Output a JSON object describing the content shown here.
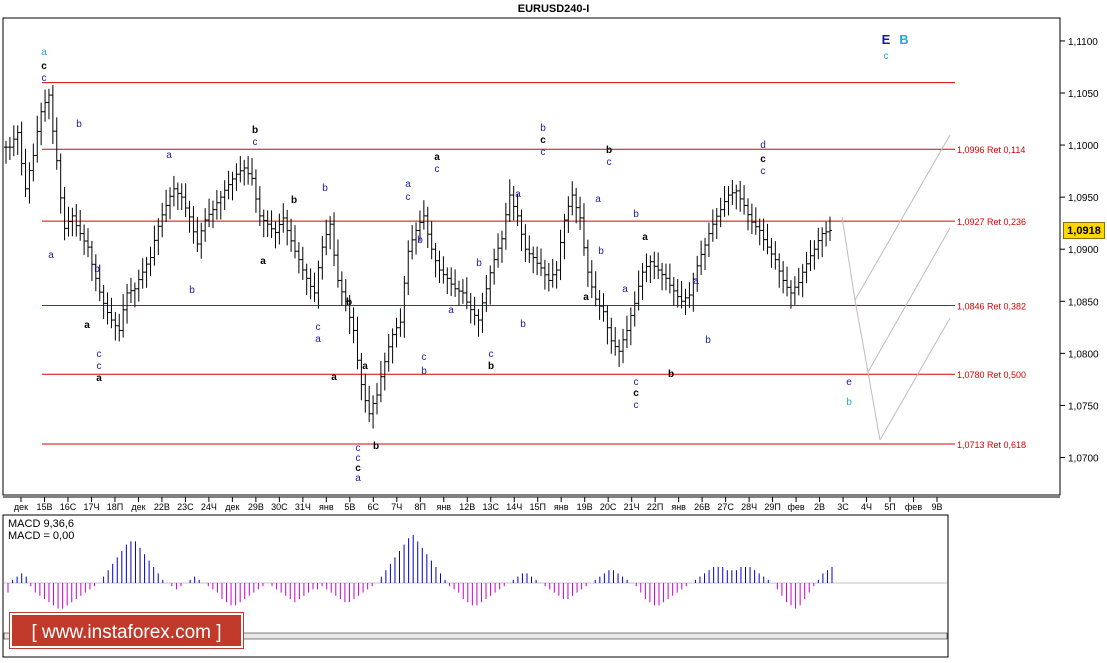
{
  "title": "EURUSD240-I",
  "current_price": "1,0918",
  "watermark": "[ www.instaforex.com ]",
  "macd": {
    "label1": "MACD 9,36,6",
    "label2": "MACD = 0,00"
  },
  "colors": {
    "retracement": "#dd0000",
    "bar": "#000000",
    "macd": "#cc00cc",
    "macd_pos": "#0000cc",
    "price_box": "#ffd700",
    "watermark_bg": "#c0392b",
    "wave_blue": "#1a1aa6",
    "wave_cyan": "#2aa6d6"
  },
  "chart_data": {
    "type": "ohlc",
    "symbol": "EURUSD",
    "timeframe": "H4",
    "y_ticks": [
      "1,1100",
      "1,1050",
      "1,1000",
      "1,0950",
      "1,0900",
      "1,0850",
      "1,0800",
      "1,0750",
      "1,0700"
    ],
    "ylim": [
      1.0664,
      1.1122
    ],
    "x_ticks": [
      "дек",
      "15В",
      "16С",
      "17Ч",
      "18П",
      "дек",
      "22В",
      "23С",
      "24Ч",
      "дек",
      "29В",
      "30С",
      "31Ч",
      "янв",
      "5В",
      "6С",
      "7Ч",
      "8П",
      "янв",
      "12В",
      "13С",
      "14Ч",
      "15П",
      "янв",
      "19В",
      "20С",
      "21Ч",
      "22П",
      "янв",
      "26В",
      "27С",
      "28Ч",
      "29П",
      "фев",
      "2В",
      "3С",
      "4Ч",
      "5П",
      "фев",
      "9В"
    ],
    "retracements": [
      {
        "price": 1.106,
        "label": ""
      },
      {
        "price": 1.0996,
        "label": "1,0996 Ret 0,114"
      },
      {
        "price": 1.0927,
        "label": "1,0927 Ret 0,236"
      },
      {
        "price": 1.0846,
        "label": "1,0846 Ret 0,382"
      },
      {
        "price": 1.078,
        "label": "1,0780 Ret 0,500"
      },
      {
        "price": 1.0713,
        "label": "1,0713 Ret 0,618"
      }
    ],
    "wave_labels": [
      {
        "text": "a",
        "x": 44,
        "y": 55,
        "c": "cyan"
      },
      {
        "text": "c",
        "x": 44,
        "y": 69,
        "c": "black"
      },
      {
        "text": "c",
        "x": 44,
        "y": 81,
        "c": "blue"
      },
      {
        "text": "b",
        "x": 79,
        "y": 127,
        "c": "blue"
      },
      {
        "text": "a",
        "x": 51,
        "y": 258,
        "c": "blue"
      },
      {
        "text": "b",
        "x": 97,
        "y": 272,
        "c": "blue"
      },
      {
        "text": "a",
        "x": 87,
        "y": 328,
        "c": "black"
      },
      {
        "text": "c",
        "x": 99,
        "y": 357,
        "c": "blue"
      },
      {
        "text": "c",
        "x": 99,
        "y": 369,
        "c": "blue"
      },
      {
        "text": "a",
        "x": 99,
        "y": 381,
        "c": "black"
      },
      {
        "text": "a",
        "x": 169,
        "y": 158,
        "c": "blue"
      },
      {
        "text": "b",
        "x": 192,
        "y": 293,
        "c": "blue"
      },
      {
        "text": "b",
        "x": 255,
        "y": 133,
        "c": "black"
      },
      {
        "text": "c",
        "x": 255,
        "y": 145,
        "c": "blue"
      },
      {
        "text": "a",
        "x": 263,
        "y": 264,
        "c": "black"
      },
      {
        "text": "b",
        "x": 294,
        "y": 203,
        "c": "black"
      },
      {
        "text": "b",
        "x": 325,
        "y": 191,
        "c": "blue"
      },
      {
        "text": "c",
        "x": 318,
        "y": 330,
        "c": "blue"
      },
      {
        "text": "a",
        "x": 318,
        "y": 342,
        "c": "blue"
      },
      {
        "text": "a",
        "x": 334,
        "y": 380,
        "c": "black"
      },
      {
        "text": "b",
        "x": 349,
        "y": 305,
        "c": "black"
      },
      {
        "text": "a",
        "x": 365,
        "y": 369,
        "c": "black"
      },
      {
        "text": "b",
        "x": 376,
        "y": 449,
        "c": "black"
      },
      {
        "text": "c",
        "x": 358,
        "y": 451,
        "c": "blue"
      },
      {
        "text": "c",
        "x": 358,
        "y": 461,
        "c": "blue"
      },
      {
        "text": "c",
        "x": 358,
        "y": 471,
        "c": "black"
      },
      {
        "text": "a",
        "x": 358,
        "y": 481,
        "c": "blue"
      },
      {
        "text": "a",
        "x": 408,
        "y": 187,
        "c": "blue"
      },
      {
        "text": "c",
        "x": 408,
        "y": 200,
        "c": "blue"
      },
      {
        "text": "b",
        "x": 420,
        "y": 243,
        "c": "blue"
      },
      {
        "text": "c",
        "x": 424,
        "y": 360,
        "c": "blue"
      },
      {
        "text": "b",
        "x": 424,
        "y": 374,
        "c": "blue"
      },
      {
        "text": "a",
        "x": 437,
        "y": 160,
        "c": "black"
      },
      {
        "text": "c",
        "x": 437,
        "y": 172,
        "c": "blue"
      },
      {
        "text": "a",
        "x": 451,
        "y": 313,
        "c": "blue"
      },
      {
        "text": "b",
        "x": 479,
        "y": 266,
        "c": "blue"
      },
      {
        "text": "c",
        "x": 491,
        "y": 357,
        "c": "blue"
      },
      {
        "text": "b",
        "x": 491,
        "y": 369,
        "c": "black"
      },
      {
        "text": "a",
        "x": 518,
        "y": 197,
        "c": "blue"
      },
      {
        "text": "b",
        "x": 523,
        "y": 327,
        "c": "blue"
      },
      {
        "text": "b",
        "x": 543,
        "y": 131,
        "c": "blue"
      },
      {
        "text": "c",
        "x": 543,
        "y": 143,
        "c": "black"
      },
      {
        "text": "c",
        "x": 543,
        "y": 155,
        "c": "blue"
      },
      {
        "text": "a",
        "x": 586,
        "y": 300,
        "c": "black"
      },
      {
        "text": "a",
        "x": 598,
        "y": 202,
        "c": "blue"
      },
      {
        "text": "b",
        "x": 601,
        "y": 254,
        "c": "blue"
      },
      {
        "text": "b",
        "x": 609,
        "y": 153,
        "c": "black"
      },
      {
        "text": "c",
        "x": 609,
        "y": 165,
        "c": "blue"
      },
      {
        "text": "b",
        "x": 636,
        "y": 217,
        "c": "blue"
      },
      {
        "text": "a",
        "x": 625,
        "y": 292,
        "c": "blue"
      },
      {
        "text": "a",
        "x": 645,
        "y": 240,
        "c": "black"
      },
      {
        "text": "c",
        "x": 636,
        "y": 385,
        "c": "blue"
      },
      {
        "text": "c",
        "x": 636,
        "y": 396,
        "c": "black"
      },
      {
        "text": "c",
        "x": 636,
        "y": 408,
        "c": "blue"
      },
      {
        "text": "b",
        "x": 671,
        "y": 377,
        "c": "black"
      },
      {
        "text": "a",
        "x": 696,
        "y": 284,
        "c": "blue"
      },
      {
        "text": "b",
        "x": 708,
        "y": 343,
        "c": "blue"
      },
      {
        "text": "d",
        "x": 763,
        "y": 148,
        "c": "blue"
      },
      {
        "text": "c",
        "x": 763,
        "y": 162,
        "c": "black"
      },
      {
        "text": "c",
        "x": 763,
        "y": 174,
        "c": "blue"
      },
      {
        "text": "e",
        "x": 849,
        "y": 385,
        "c": "blue"
      },
      {
        "text": "b",
        "x": 849,
        "y": 405,
        "c": "cyan"
      },
      {
        "text": "E",
        "x": 886,
        "y": 44,
        "c": "blue"
      },
      {
        "text": "B",
        "x": 904,
        "y": 44,
        "c": "cyan"
      },
      {
        "text": "c",
        "x": 886,
        "y": 59,
        "c": "cyan"
      }
    ],
    "forecast_paths": [
      [
        [
          842,
          217
        ],
        [
          855,
          300
        ],
        [
          868,
          372
        ],
        [
          880,
          440
        ]
      ],
      [
        [
          855,
          300
        ],
        [
          950,
          135
        ]
      ],
      [
        [
          868,
          372
        ],
        [
          950,
          228
        ]
      ],
      [
        [
          880,
          440
        ],
        [
          950,
          318
        ]
      ]
    ],
    "close_series": [
      1.0998,
      1.1012,
      1.0958,
      1.099,
      1.1032,
      1.1048,
      1.0985,
      1.092,
      1.0932,
      1.0915,
      1.0902,
      1.0872,
      1.0848,
      1.0832,
      1.0822,
      1.0858,
      1.0862,
      1.0878,
      1.0892,
      1.0922,
      1.0942,
      1.0958,
      1.095,
      1.0931,
      1.0905,
      1.0928,
      1.0938,
      1.095,
      1.0962,
      1.0972,
      1.0978,
      1.0968,
      1.0932,
      1.0924,
      1.0916,
      1.093,
      1.0908,
      1.089,
      1.0872,
      1.0858,
      1.0902,
      1.0924,
      1.087,
      1.085,
      1.0822,
      1.077,
      1.0742,
      1.076,
      1.0792,
      1.0818,
      1.083,
      1.0898,
      1.0918,
      1.0932,
      1.09,
      1.088,
      1.0872,
      1.0862,
      1.0858,
      1.0842,
      1.0832,
      1.0862,
      1.089,
      1.091,
      1.0952,
      1.0932,
      1.09,
      1.0892,
      1.0882,
      1.087,
      1.088,
      1.0928,
      1.0952,
      1.093,
      1.0878,
      1.0852,
      1.084,
      1.0812,
      1.0802,
      1.0822,
      1.0848,
      1.0878,
      1.0888,
      1.088,
      1.0872,
      1.086,
      1.085,
      1.0856,
      1.0884,
      1.0904,
      1.0924,
      1.0938,
      1.0952,
      1.0956,
      1.0942,
      1.0926,
      1.0918,
      1.0902,
      1.089,
      1.087,
      1.0858,
      1.0868,
      1.0886,
      1.09,
      1.0915,
      1.0918
    ],
    "macd_hist": [
      -3,
      1,
      2,
      3,
      2,
      -1,
      -3,
      -4,
      -5,
      -6,
      -7,
      -8,
      -8,
      -7,
      -6,
      -5,
      -4,
      -3,
      -2,
      -1,
      0,
      2,
      4,
      6,
      8,
      10,
      12,
      13,
      13,
      11,
      9,
      7,
      5,
      3,
      1,
      0,
      -1,
      -2,
      -1,
      0,
      1,
      2,
      1,
      0,
      -1,
      -2,
      -3,
      -5,
      -6,
      -7,
      -7,
      -6,
      -5,
      -4,
      -3,
      -2,
      -1,
      0,
      -1,
      -2,
      -3,
      -4,
      -5,
      -6,
      -5,
      -4,
      -3,
      -2,
      -2,
      -1,
      -2,
      -3,
      -4,
      -5,
      -6,
      -6,
      -5,
      -4,
      -3,
      -2,
      -1,
      0,
      2,
      4,
      6,
      8,
      10,
      12,
      14,
      15,
      13,
      11,
      9,
      7,
      5,
      3,
      1,
      -1,
      -2,
      -3,
      -5,
      -6,
      -7,
      -7,
      -6,
      -5,
      -4,
      -3,
      -2,
      -1,
      0,
      1,
      2,
      3,
      3,
      2,
      1,
      0,
      -1,
      -2,
      -3,
      -4,
      -5,
      -5,
      -4,
      -3,
      -2,
      -1,
      0,
      1,
      2,
      3,
      4,
      4,
      3,
      2,
      1,
      0,
      -1,
      -3,
      -5,
      -6,
      -7,
      -7,
      -6,
      -5,
      -4,
      -3,
      -2,
      -1,
      0,
      1,
      2,
      3,
      4,
      5,
      5,
      5,
      4,
      4,
      4,
      5,
      5,
      5,
      4,
      3,
      2,
      1,
      0,
      -2,
      -4,
      -6,
      -7,
      -8,
      -7,
      -5,
      -3,
      -1,
      1,
      3,
      4,
      5
    ]
  }
}
